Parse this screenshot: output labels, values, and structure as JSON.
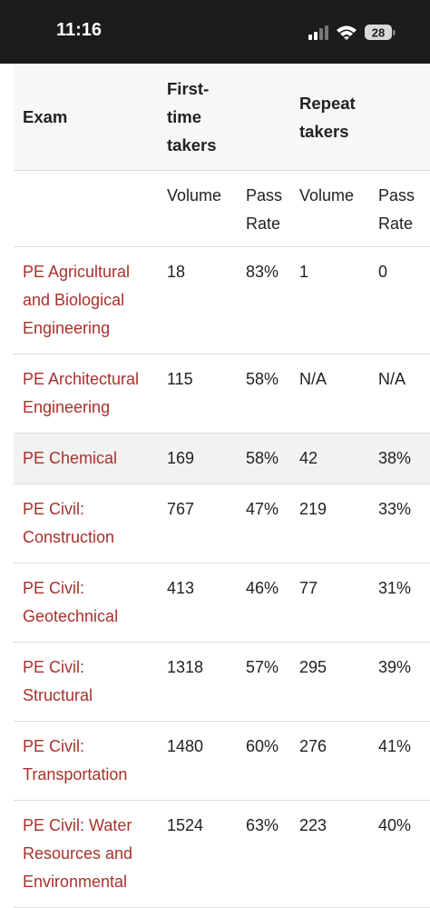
{
  "status_bar": {
    "time": "11:16",
    "battery": "28"
  },
  "table": {
    "header": [
      "Exam",
      "First-time takers",
      "Repeat takers"
    ],
    "subheader": [
      "Volume",
      "Pass Rate",
      "Volume",
      "Pass Rate"
    ],
    "rows": [
      [
        "PE Agricultural and Biological Engineering",
        "18",
        "83%",
        "1",
        "0"
      ],
      [
        "PE Architectural Engineering",
        "115",
        "58%",
        "N/A",
        "N/A"
      ],
      [
        "PE Chemical",
        "169",
        "58%",
        "42",
        "38%"
      ],
      [
        "PE Civil: Construction",
        "767",
        "47%",
        "219",
        "33%"
      ],
      [
        "PE Civil: Geotechnical",
        "413",
        "46%",
        "77",
        "31%"
      ],
      [
        "PE Civil: Structural",
        "1318",
        "57%",
        "295",
        "39%"
      ],
      [
        "PE Civil: Transportation",
        "1480",
        "60%",
        "276",
        "41%"
      ],
      [
        "PE Civil: Water Resources and Environmental",
        "1524",
        "63%",
        "223",
        "40%"
      ]
    ]
  }
}
